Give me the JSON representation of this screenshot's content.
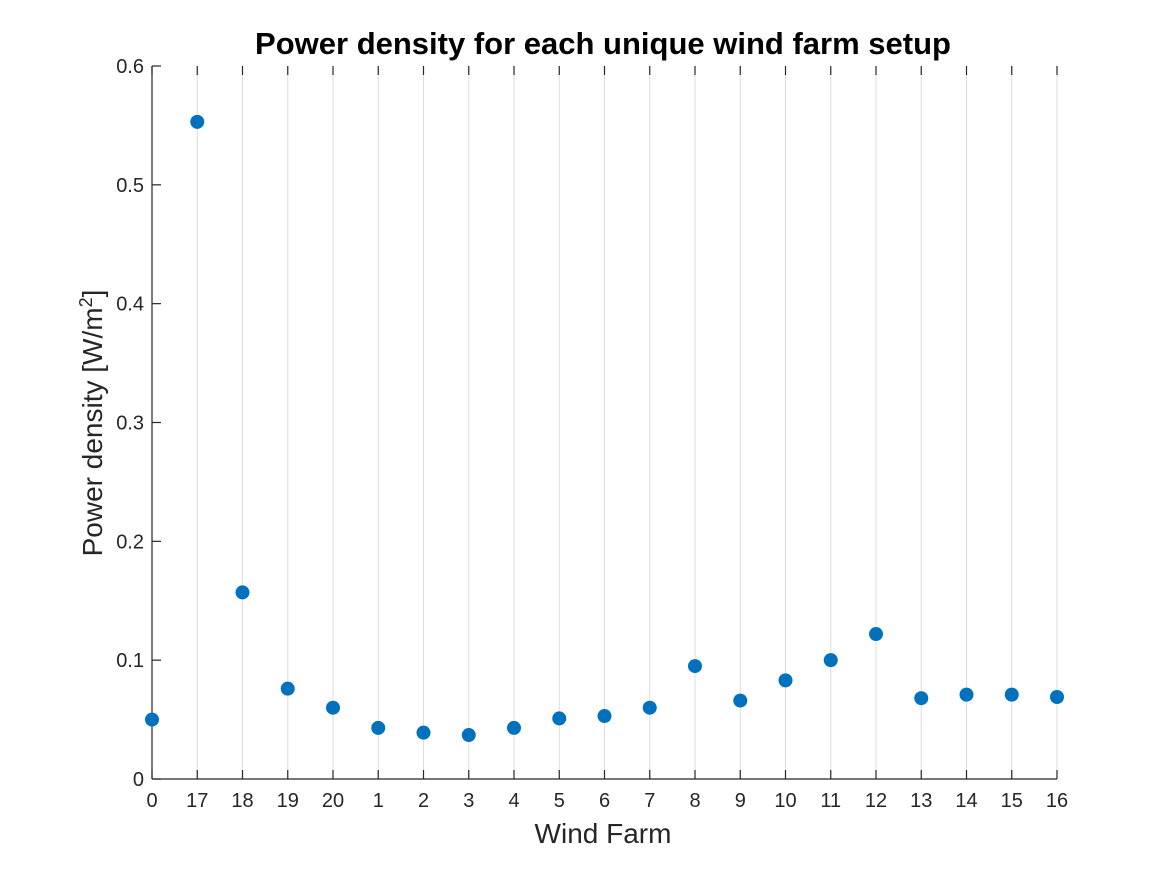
{
  "chart_data": {
    "type": "scatter",
    "title": "Power density for each unique wind farm setup",
    "xlabel": "Wind Farm",
    "ylabel": {
      "main": "Power density [W/m",
      "superscript": "2",
      "suffix": "]"
    },
    "categories": [
      "0",
      "17",
      "18",
      "19",
      "20",
      "1",
      "2",
      "3",
      "4",
      "5",
      "6",
      "7",
      "8",
      "9",
      "10",
      "11",
      "12",
      "13",
      "14",
      "15",
      "16"
    ],
    "values": [
      0.05,
      0.553,
      0.157,
      0.076,
      0.06,
      0.043,
      0.039,
      0.037,
      0.043,
      0.051,
      0.053,
      0.06,
      0.095,
      0.066,
      0.083,
      0.1,
      0.122,
      0.068,
      0.071,
      0.071,
      0.069
    ],
    "ylim": [
      0,
      0.6
    ],
    "yticks": [
      0,
      0.1,
      0.2,
      0.3,
      0.4,
      0.5,
      0.6
    ],
    "ytick_labels": [
      "0",
      "0.1",
      "0.2",
      "0.3",
      "0.4",
      "0.5",
      "0.6"
    ],
    "grid": "x-major",
    "marker_color": "#0072BD"
  }
}
